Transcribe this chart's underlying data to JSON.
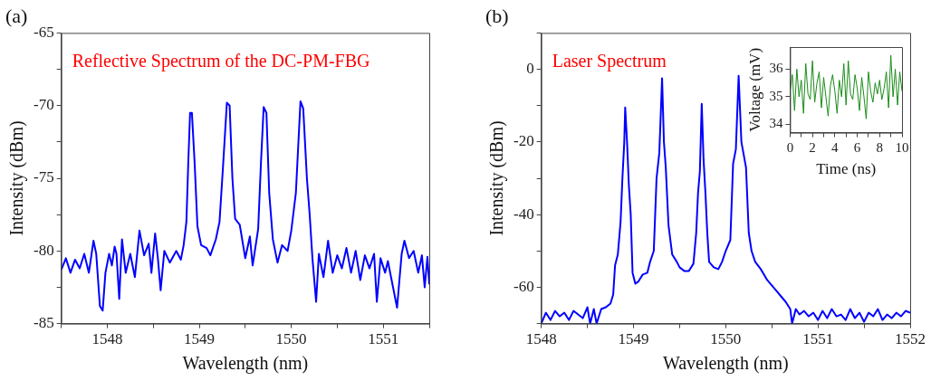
{
  "chart_data": [
    {
      "type": "line",
      "title": "(a)",
      "xlabel": "Wavelength (nm)",
      "ylabel": "Intensity (dBm)",
      "annotations": [
        "Reflective Spectrum of the DC-PM-FBG"
      ],
      "x": [
        1547.5,
        1547.55,
        1547.6,
        1547.65,
        1547.7,
        1547.75,
        1547.8,
        1547.85,
        1547.88,
        1547.92,
        1547.95,
        1547.98,
        1548.02,
        1548.05,
        1548.08,
        1548.1,
        1548.13,
        1548.16,
        1548.2,
        1548.25,
        1548.3,
        1548.35,
        1548.4,
        1548.45,
        1548.48,
        1548.52,
        1548.55,
        1548.58,
        1548.62,
        1548.68,
        1548.75,
        1548.8,
        1548.83,
        1548.86,
        1548.88,
        1548.9,
        1548.92,
        1548.95,
        1548.98,
        1549.02,
        1549.08,
        1549.12,
        1549.18,
        1549.22,
        1549.26,
        1549.3,
        1549.33,
        1549.36,
        1549.39,
        1549.44,
        1549.5,
        1549.55,
        1549.58,
        1549.64,
        1549.67,
        1549.7,
        1549.73,
        1549.76,
        1549.8,
        1549.85,
        1549.9,
        1549.96,
        1550.0,
        1550.05,
        1550.1,
        1550.13,
        1550.17,
        1550.2,
        1550.23,
        1550.27,
        1550.3,
        1550.35,
        1550.4,
        1550.45,
        1550.5,
        1550.55,
        1550.6,
        1550.65,
        1550.7,
        1550.75,
        1550.8,
        1550.85,
        1550.9,
        1550.93,
        1550.97,
        1551.02,
        1551.05,
        1551.1,
        1551.15,
        1551.2,
        1551.23,
        1551.28,
        1551.33,
        1551.38,
        1551.42,
        1551.45,
        1551.48,
        1551.5
      ],
      "series": [
        {
          "color": "#0000ff",
          "values": [
            -81.3,
            -80.5,
            -81.5,
            -80.6,
            -81.2,
            -80.2,
            -81.5,
            -79.3,
            -80.2,
            -83.8,
            -84.1,
            -81.5,
            -80.2,
            -81.0,
            -79.7,
            -80.2,
            -83.3,
            -79.2,
            -81.5,
            -80.2,
            -81.8,
            -78.6,
            -80.3,
            -79.5,
            -81.5,
            -78.8,
            -80.5,
            -82.7,
            -80.0,
            -80.8,
            -80.0,
            -80.6,
            -79.6,
            -78.0,
            -74,
            -70.5,
            -70.5,
            -74,
            -78.3,
            -79.6,
            -79.8,
            -80.3,
            -79.2,
            -78,
            -74,
            -69.8,
            -70.0,
            -75,
            -77.8,
            -78.2,
            -80.5,
            -79.0,
            -81.0,
            -78.5,
            -74,
            -70.1,
            -70.5,
            -76,
            -79.2,
            -80.8,
            -79.6,
            -80.0,
            -78.6,
            -76,
            -69.7,
            -70.2,
            -75,
            -77.5,
            -80.5,
            -83.5,
            -80.2,
            -81.8,
            -79.3,
            -81.5,
            -80.3,
            -81.2,
            -79.8,
            -81.5,
            -80.0,
            -82.0,
            -80.3,
            -81.2,
            -80.2,
            -83.5,
            -80.5,
            -81.5,
            -80.7,
            -82.3,
            -83.9,
            -80.2,
            -79.3,
            -80.5,
            -80.0,
            -81.5,
            -80.3,
            -82.5,
            -80.4,
            -82.3
          ]
        }
      ],
      "xlim": [
        1547.5,
        1551.5
      ],
      "xticks": [
        {
          "value": 1547.5,
          "label": null
        },
        1548,
        {
          "value": 1548.5,
          "label": null
        },
        1549,
        {
          "value": 1549.5,
          "label": null
        },
        1550,
        {
          "value": 1550.5,
          "label": null
        },
        1551,
        {
          "value": 1551.5,
          "label": null
        }
      ],
      "ylim": [
        -85,
        -65
      ],
      "yticks": [
        -85,
        {
          "value": -82.5,
          "label": null
        },
        -80,
        {
          "value": -77.5,
          "label": null
        },
        -75,
        {
          "value": -72.5,
          "label": null
        },
        -70,
        {
          "value": -67.5,
          "label": null
        },
        -65
      ]
    },
    {
      "type": "line",
      "title": "(b)",
      "xlabel": "Wavelength (nm)",
      "ylabel": "Intensity (dBm)",
      "annotations": [
        "Laser Spectrum"
      ],
      "x": [
        1548.0,
        1548.05,
        1548.1,
        1548.15,
        1548.2,
        1548.25,
        1548.3,
        1548.35,
        1548.4,
        1548.45,
        1548.5,
        1548.53,
        1548.57,
        1548.6,
        1548.65,
        1548.7,
        1548.75,
        1548.78,
        1548.8,
        1548.83,
        1548.86,
        1548.88,
        1548.9,
        1548.91,
        1548.93,
        1548.95,
        1548.97,
        1548.99,
        1549.02,
        1549.05,
        1549.1,
        1549.15,
        1549.18,
        1549.22,
        1549.25,
        1549.28,
        1549.31,
        1549.33,
        1549.35,
        1549.38,
        1549.42,
        1549.47,
        1549.5,
        1549.55,
        1549.6,
        1549.65,
        1549.68,
        1549.7,
        1549.72,
        1549.74,
        1549.76,
        1549.78,
        1549.8,
        1549.82,
        1549.87,
        1549.92,
        1549.96,
        1550.0,
        1550.05,
        1550.08,
        1550.11,
        1550.14,
        1550.17,
        1550.22,
        1550.25,
        1550.28,
        1550.32,
        1550.38,
        1550.45,
        1550.5,
        1550.55,
        1550.6,
        1550.65,
        1550.7,
        1550.72,
        1550.76,
        1550.8,
        1550.85,
        1550.9,
        1550.95,
        1551.0,
        1551.05,
        1551.1,
        1551.15,
        1551.2,
        1551.25,
        1551.3,
        1551.35,
        1551.4,
        1551.45,
        1551.5,
        1551.55,
        1551.6,
        1551.65,
        1551.7,
        1551.75,
        1551.8,
        1551.85,
        1551.9,
        1551.95,
        1552.0
      ],
      "series": [
        {
          "color": "#0000ff",
          "values": [
            -70,
            -67,
            -69,
            -66.5,
            -68,
            -67,
            -69,
            -66.5,
            -67.5,
            -68.5,
            -65.5,
            -70,
            -66,
            -70,
            -66,
            -65.5,
            -64.5,
            -62,
            -54,
            -51,
            -42,
            -30,
            -20,
            -10.5,
            -20,
            -32,
            -40,
            -56,
            -59,
            -58.5,
            -56.5,
            -56,
            -53,
            -50,
            -30,
            -23,
            -2.5,
            -20,
            -27,
            -43,
            -51,
            -53,
            -54.5,
            -55.5,
            -55.5,
            -53.5,
            -45,
            -34,
            -28,
            -9.5,
            -25,
            -34,
            -45,
            -53,
            -54.5,
            -55,
            -53,
            -50,
            -47,
            -26,
            -22,
            -1.8,
            -20,
            -27,
            -45,
            -50,
            -53,
            -55,
            -58,
            -59.5,
            -61,
            -62.5,
            -64,
            -66,
            -70,
            -66,
            -67.5,
            -66.5,
            -68,
            -67,
            -69,
            -66.5,
            -68.5,
            -66,
            -68,
            -67.5,
            -69,
            -66,
            -68.5,
            -67,
            -69.5,
            -67,
            -68,
            -66,
            -69,
            -67.5,
            -68.5,
            -67,
            -68,
            -66.5,
            -67
          ]
        }
      ],
      "xlim": [
        1548,
        1552
      ],
      "xticks": [
        1548,
        {
          "value": 1548.5,
          "label": null
        },
        1549,
        {
          "value": 1549.5,
          "label": null
        },
        1550,
        {
          "value": 1550.5,
          "label": null
        },
        1551,
        {
          "value": 1551.5,
          "label": null
        },
        1552
      ],
      "ylim": [
        -70,
        10
      ],
      "yticks": [
        {
          "value": -70,
          "label": null
        },
        -60,
        {
          "value": -50,
          "label": null
        },
        -40,
        {
          "value": -30,
          "label": null
        },
        -20,
        {
          "value": -10,
          "label": null
        },
        0,
        {
          "value": 10,
          "label": null
        }
      ]
    },
    {
      "type": "line",
      "xlabel": "Time (ns)",
      "ylabel": "Voltage (mV)",
      "x": [
        0,
        0.2,
        0.4,
        0.6,
        0.8,
        1,
        1.2,
        1.4,
        1.6,
        1.8,
        2,
        2.2,
        2.4,
        2.6,
        2.8,
        3,
        3.2,
        3.4,
        3.6,
        3.8,
        4,
        4.2,
        4.4,
        4.6,
        4.8,
        5,
        5.2,
        5.4,
        5.6,
        5.8,
        6,
        6.2,
        6.4,
        6.6,
        6.8,
        7,
        7.2,
        7.4,
        7.6,
        7.8,
        8,
        8.2,
        8.4,
        8.6,
        8.8,
        9,
        9.2,
        9.4,
        9.6,
        9.8,
        10
      ],
      "series": [
        {
          "color": "#1a8c1a",
          "values": [
            35.2,
            35.8,
            34.5,
            36.0,
            35.0,
            35.6,
            34.4,
            36.2,
            35.1,
            34.9,
            36.3,
            34.8,
            35.5,
            35.9,
            34.6,
            35.7,
            35.0,
            34.3,
            35.4,
            35.8,
            35.2,
            34.4,
            35.6,
            35.0,
            36.2,
            34.7,
            36.3,
            35.1,
            34.9,
            35.8,
            35.3,
            34.5,
            35.7,
            35.0,
            34.2,
            35.9,
            35.2,
            34.8,
            35.5,
            35.1,
            35.6,
            34.9,
            35.3,
            35.9,
            34.6,
            36.5,
            35.0,
            36.0,
            34.7,
            35.9,
            35.2
          ]
        }
      ],
      "xlim": [
        0,
        10
      ],
      "xticks": [
        0,
        {
          "value": 1,
          "label": null
        },
        2,
        {
          "value": 3,
          "label": null
        },
        4,
        {
          "value": 5,
          "label": null
        },
        6,
        {
          "value": 7,
          "label": null
        },
        8,
        {
          "value": 9,
          "label": null
        },
        10
      ],
      "ylim": [
        33.7,
        36.8
      ],
      "yticks": [
        34,
        35,
        36
      ]
    }
  ]
}
